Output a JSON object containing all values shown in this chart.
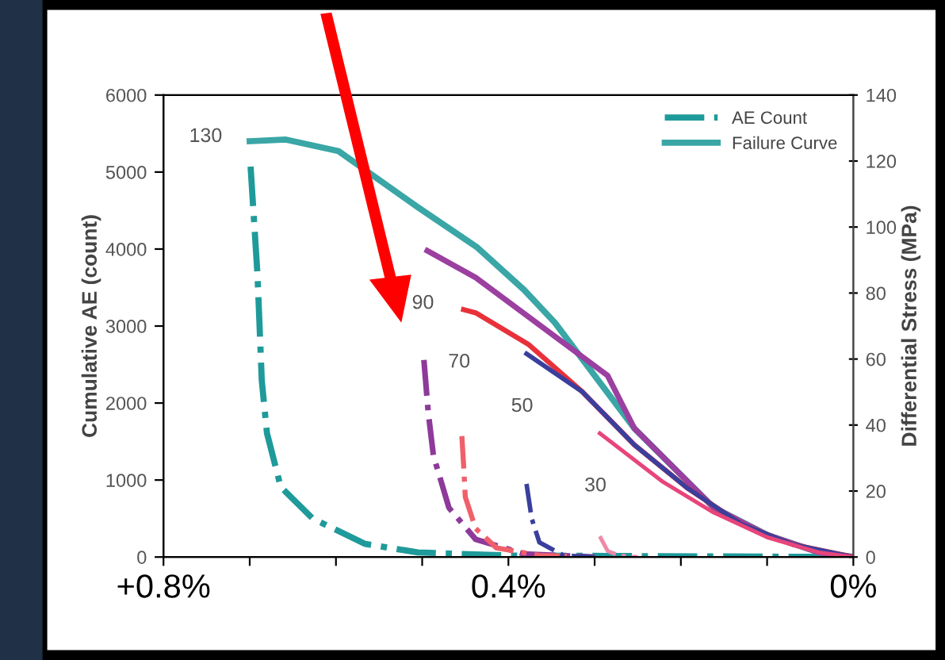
{
  "chart_data": {
    "type": "line",
    "ylabel": "Cumulative AE (count)",
    "y2label": "Differential Stress (MPa)",
    "xlim": [
      0.8,
      0
    ],
    "xticks": [
      {
        "value": 0.8,
        "label": "+0.8%"
      },
      {
        "value": 0.7,
        "label": null
      },
      {
        "value": 0.6,
        "label": null
      },
      {
        "value": 0.5,
        "label": null
      },
      {
        "value": 0.4,
        "label": "0.4%"
      },
      {
        "value": 0.3,
        "label": null
      },
      {
        "value": 0.2,
        "label": null
      },
      {
        "value": 0.1,
        "label": null
      },
      {
        "value": 0,
        "label": "0%"
      }
    ],
    "ylim": [
      0,
      6000
    ],
    "yticks": [
      0,
      1000,
      2000,
      3000,
      4000,
      5000,
      6000
    ],
    "y2lim": [
      0,
      140
    ],
    "y2ticks": [
      0,
      20,
      40,
      60,
      80,
      100,
      120,
      140
    ],
    "grid": false,
    "legend": "top right",
    "series": [
      {
        "name": "AE Count",
        "color": "#1f9a9a",
        "line_style": "dashdot",
        "x": [
          0.699,
          0.691,
          0.686,
          0.68,
          0.664,
          0.627,
          0.566,
          0.505,
          0.4,
          0
        ],
        "values": [
          5070,
          3670,
          2290,
          1610,
          910,
          500,
          170,
          60,
          20,
          0
        ]
      },
      {
        "color": "#8e3a9a",
        "line_style": "dashdot",
        "x": [
          0.498,
          0.493,
          0.487,
          0.469,
          0.438,
          0.382,
          0.3
        ],
        "values": [
          2560,
          1880,
          1320,
          640,
          230,
          40,
          0
        ]
      },
      {
        "color": "#f0606a",
        "line_style": "dashdot",
        "x": [
          0.454,
          0.452,
          0.45,
          0.438,
          0.414,
          0.364,
          0.3
        ],
        "values": [
          1570,
          1200,
          780,
          370,
          120,
          20,
          0
        ]
      },
      {
        "color": "#3a3f9e",
        "line_style": "dashdot",
        "x": [
          0.379,
          0.373,
          0.364,
          0.336,
          0.3
        ],
        "values": [
          950,
          500,
          190,
          20,
          0
        ]
      },
      {
        "color": "#f08aa8",
        "line_style": "dashdot",
        "x": [
          0.294,
          0.285,
          0.272,
          0.25
        ],
        "values": [
          270,
          80,
          20,
          0
        ]
      },
      {
        "name": "Failure Curve",
        "color": "#3aa6a6",
        "line_style": "solid",
        "axis": "y2",
        "x": [
          0.7,
          0.658,
          0.597,
          0.505,
          0.437,
          0.382,
          0.346,
          0.254,
          0.162,
          0.1,
          0.04,
          0
        ],
        "values": [
          126,
          126.5,
          123,
          106,
          94,
          81,
          71,
          39,
          15,
          6.7,
          1.4,
          0
        ]
      },
      {
        "color": "#9b3fa0",
        "line_style": "solid",
        "axis": "y2",
        "x": [
          0.494,
          0.438,
          0.285,
          0.254,
          0.162,
          0.1,
          0.04,
          0
        ],
        "values": [
          92.8,
          84.7,
          55,
          39,
          15,
          6.7,
          1.4,
          0
        ]
      },
      {
        "color": "#e8313a",
        "line_style": "solid",
        "axis": "y2",
        "x": [
          0.452,
          0.438,
          0.377,
          0.314,
          0.254,
          0.193,
          0.13,
          0.07,
          0
        ],
        "values": [
          75,
          74,
          64.5,
          50,
          34,
          21,
          10,
          3.8,
          0
        ]
      },
      {
        "color": "#3a3f9e",
        "line_style": "solid",
        "axis": "y2",
        "x": [
          0.379,
          0.314,
          0.254,
          0.193,
          0.13,
          0.07,
          0
        ],
        "values": [
          61.6,
          50,
          34,
          21,
          10,
          3.8,
          0
        ]
      },
      {
        "color": "#e8457a",
        "line_style": "solid",
        "axis": "y2",
        "x": [
          0.294,
          0.222,
          0.162,
          0.1,
          0.04,
          0
        ],
        "values": [
          37.5,
          23,
          13.5,
          6,
          1.4,
          0
        ]
      }
    ],
    "annotations": [
      "130",
      "90",
      "70",
      "50",
      "30"
    ]
  }
}
